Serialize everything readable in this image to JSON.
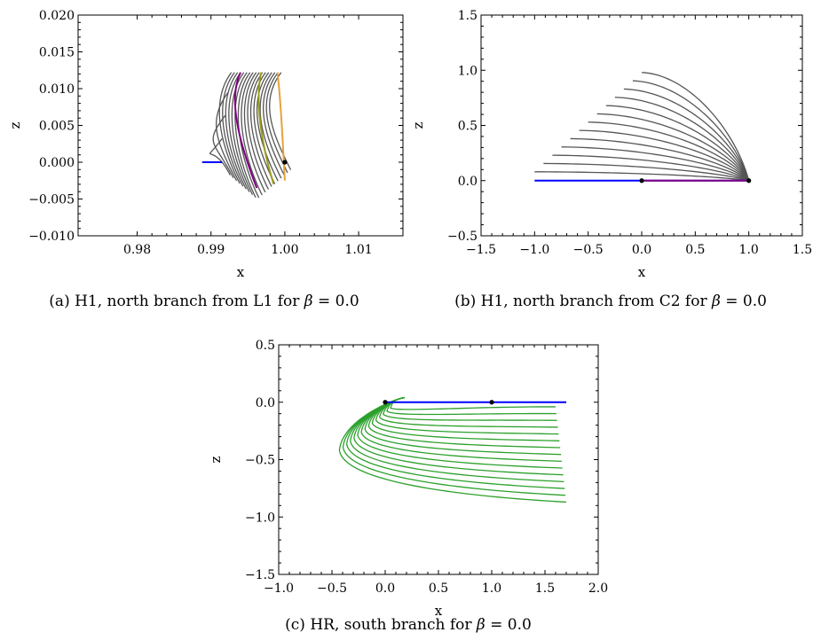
{
  "chart_data": [
    {
      "type": "line",
      "panel": "a",
      "caption": {
        "prefix": "(a) H1, north branch from L1 for",
        "beta": "β",
        "suffix": " = 0.0"
      },
      "xlabel": "x",
      "ylabel": "z",
      "xlim": [
        0.972,
        1.016
      ],
      "ylim": [
        -0.01,
        0.02
      ],
      "xticks": [
        0.98,
        0.99,
        1.0,
        1.01
      ],
      "xtick_labels": [
        "0.98",
        "0.99",
        "1.00",
        "1.01"
      ],
      "yticks": [
        -0.01,
        -0.005,
        0.0,
        0.005,
        0.01,
        0.015,
        0.02
      ],
      "ytick_labels": [
        "−0.010",
        "−0.005",
        "0.000",
        "0.005",
        "0.010",
        "0.015",
        "0.020"
      ],
      "series": [
        {
          "color": "#555555",
          "family": true,
          "count": 20,
          "x_start_range": [
            0.9915,
            0.9995
          ],
          "x_end_range": [
            0.9908,
            0.999
          ],
          "z_top": 0.0122,
          "z_end_range": [
            -0.0005,
            -0.005
          ]
        },
        {
          "color": "#800080",
          "x": [
            0.994,
            0.992,
            0.9945,
            0.9962
          ],
          "z": [
            0.0122,
            0.008,
            0.001,
            -0.0035
          ]
        },
        {
          "color": "#9a9a1a",
          "x": [
            0.9968,
            0.9958,
            0.9972,
            0.9985
          ],
          "z": [
            0.0122,
            0.008,
            0.001,
            -0.003
          ]
        },
        {
          "color": "#e6a23c",
          "x": [
            0.999,
            0.9995,
            0.9998,
            1.0
          ],
          "z": [
            0.0122,
            0.008,
            0.001,
            -0.0025
          ]
        },
        {
          "color": "#0000ff",
          "x": [
            0.9888,
            0.9915
          ],
          "z": [
            0.0,
            0.0
          ]
        }
      ],
      "points": [
        {
          "x": 1.0,
          "z": 0.0
        }
      ]
    },
    {
      "type": "line",
      "panel": "b",
      "caption": {
        "prefix": "(b) H1, north branch from C2 for",
        "beta": "β",
        "suffix": " = 0.0"
      },
      "xlabel": "x",
      "ylabel": "z",
      "xlim": [
        -1.5,
        1.5
      ],
      "ylim": [
        -0.5,
        1.5
      ],
      "xticks": [
        -1.5,
        -1.0,
        -0.5,
        0.0,
        0.5,
        1.0,
        1.5
      ],
      "xtick_labels": [
        "−1.5",
        "−1.0",
        "−0.5",
        "0.0",
        "0.5",
        "1.0",
        "1.5"
      ],
      "yticks": [
        -0.5,
        0.0,
        0.5,
        1.0,
        1.5
      ],
      "ytick_labels": [
        "−0.5",
        "0.0",
        "0.5",
        "1.0",
        "1.5"
      ],
      "series": [
        {
          "color": "#555555",
          "family": true,
          "count": 13,
          "x_start_range": [
            -1.0,
            0.0
          ],
          "z_start_range": [
            0.08,
            0.98
          ],
          "x_end": 1.0,
          "z_end": 0.0
        },
        {
          "color": "#0000ff",
          "x": [
            -1.0,
            1.0
          ],
          "z": [
            0.0,
            0.0
          ]
        },
        {
          "color": "#800080",
          "x": [
            0.0,
            1.0
          ],
          "z": [
            0.0,
            0.0
          ]
        }
      ],
      "points": [
        {
          "x": 0.0,
          "z": 0.0
        },
        {
          "x": 1.0,
          "z": 0.0
        }
      ]
    },
    {
      "type": "line",
      "panel": "c",
      "caption": {
        "prefix": "(c) HR, south branch for",
        "beta": "β",
        "suffix": " = 0.0"
      },
      "xlabel": "x",
      "ylabel": "z",
      "xlim": [
        -1.0,
        2.0
      ],
      "ylim": [
        -1.5,
        0.5
      ],
      "xticks": [
        -1.0,
        -0.5,
        0.0,
        0.5,
        1.0,
        1.5,
        2.0
      ],
      "xtick_labels": [
        "−1.0",
        "−0.5",
        "0.0",
        "0.5",
        "1.0",
        "1.5",
        "2.0"
      ],
      "yticks": [
        -1.5,
        -1.0,
        -0.5,
        0.0,
        0.5
      ],
      "ytick_labels": [
        "−1.5",
        "−1.0",
        "−0.5",
        "0.0",
        "0.5"
      ],
      "series": [
        {
          "color": "#2ca02c",
          "family": true,
          "count": 15,
          "x_end_range": [
            1.6,
            1.7
          ],
          "z_end_range": [
            -0.04,
            -0.87
          ],
          "x_turn_range": [
            0.05,
            -0.43
          ],
          "z_turn_range": [
            -0.05,
            -0.42
          ]
        },
        {
          "color": "#0000ff",
          "x": [
            0.0,
            1.7
          ],
          "z": [
            0.0,
            0.0
          ]
        }
      ],
      "points": [
        {
          "x": 0.0,
          "z": 0.0
        },
        {
          "x": 1.0,
          "z": 0.0
        }
      ]
    }
  ]
}
